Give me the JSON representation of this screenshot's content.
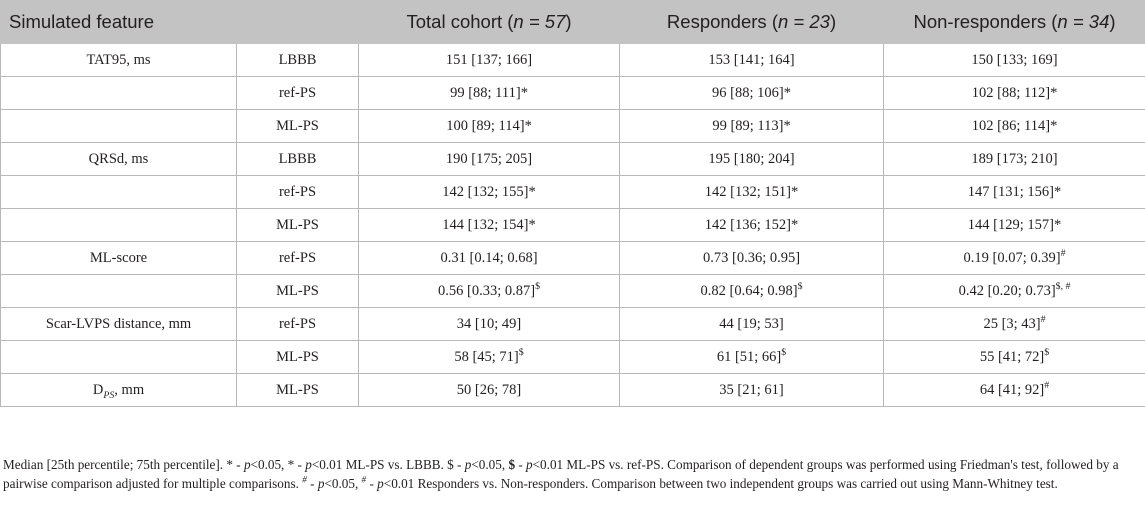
{
  "header": {
    "feature": "Simulated feature",
    "total_label": "Total cohort (",
    "total_n": "n = 57",
    "responders_label": "Responders (",
    "responders_n": "n = 23",
    "nonresponders_label": "Non-responders (",
    "nonresponders_n": "n = 34",
    "close": ")"
  },
  "rows": [
    {
      "feature": "TAT95, ms",
      "method": "LBBB",
      "total": "151 [137; 166]",
      "total_mark": "",
      "responders": "153 [141; 164]",
      "responders_mark": "",
      "nonresponders": "150 [133; 169]",
      "nonresponders_mark": ""
    },
    {
      "feature": "",
      "method": "ref-PS",
      "total": "99 [88; 111]*",
      "total_mark": "",
      "responders": "96 [88; 106]*",
      "responders_mark": "",
      "nonresponders": "102 [88; 112]*",
      "nonresponders_mark": ""
    },
    {
      "feature": "",
      "method": "ML-PS",
      "total": "100 [89; 114]*",
      "total_mark": "",
      "responders": "99 [89; 113]*",
      "responders_mark": "",
      "nonresponders": "102 [86; 114]*",
      "nonresponders_mark": ""
    },
    {
      "feature": "QRSd, ms",
      "method": "LBBB",
      "total": "190 [175; 205]",
      "total_mark": "",
      "responders": "195 [180; 204]",
      "responders_mark": "",
      "nonresponders": "189 [173; 210]",
      "nonresponders_mark": ""
    },
    {
      "feature": "",
      "method": "ref-PS",
      "total": "142 [132; 155]*",
      "total_mark": "",
      "responders": "142 [132; 151]*",
      "responders_mark": "",
      "nonresponders": "147 [131; 156]*",
      "nonresponders_mark": ""
    },
    {
      "feature": "",
      "method": "ML-PS",
      "total": "144 [132; 154]*",
      "total_mark": "",
      "responders": "142 [136; 152]*",
      "responders_mark": "",
      "nonresponders": "144 [129; 157]*",
      "nonresponders_mark": ""
    },
    {
      "feature": "ML-score",
      "method": "ref-PS",
      "total": "0.31 [0.14; 0.68]",
      "total_mark": "",
      "responders": "0.73 [0.36; 0.95]",
      "responders_mark": "",
      "nonresponders": "0.19 [0.07; 0.39]",
      "nonresponders_mark": "#"
    },
    {
      "feature": "",
      "method": "ML-PS",
      "total": "0.56 [0.33; 0.87]",
      "total_mark": "$",
      "responders": "0.82 [0.64; 0.98]",
      "responders_mark": "$",
      "nonresponders": "0.42 [0.20; 0.73]",
      "nonresponders_mark": "$, #"
    },
    {
      "feature": "Scar-LVPS distance, mm",
      "method": "ref-PS",
      "total": "34 [10; 49]",
      "total_mark": "",
      "responders": "44 [19; 53]",
      "responders_mark": "",
      "nonresponders": "25 [3; 43]",
      "nonresponders_mark": "#"
    },
    {
      "feature": "",
      "method": "ML-PS",
      "total": "58 [45; 71]",
      "total_mark": "$",
      "responders": "61 [51; 66]",
      "responders_mark": "$",
      "nonresponders": "55 [41; 72]",
      "nonresponders_mark": "$"
    },
    {
      "feature": "D",
      "feature_sub": "PS",
      "feature_tail": ", mm",
      "method": "ML-PS",
      "total": "50 [26; 78]",
      "total_mark": "",
      "responders": "35 [21; 61]",
      "responders_mark": "",
      "nonresponders": "64 [41; 92]",
      "nonresponders_mark": "#"
    }
  ],
  "footnote": {
    "s1": "Median [25th percentile; 75th percentile]. * - ",
    "p1": "p",
    "s2": "<0.05, * - ",
    "p2": "p",
    "s3": "<0.01 ML-PS vs. LBBB. $ - ",
    "p3": "p",
    "s4": "<0.05, ",
    "dollar_bold": "$",
    "s5": " - ",
    "p4": "p",
    "s6": "<0.01 ML-PS vs. ref-PS. Comparison of dependent groups was performed using Friedman's test, followed by a pairwise comparison adjusted for multiple comparisons. ",
    "hash1": "#",
    "s7": " - ",
    "p5": "p",
    "s8": "<0.05, ",
    "hash2": "#",
    "s9": " - ",
    "p6": "p",
    "s10": "<0.01 Responders vs. Non-responders. Comparison between two independent groups was carried out using Mann-Whitney test."
  }
}
